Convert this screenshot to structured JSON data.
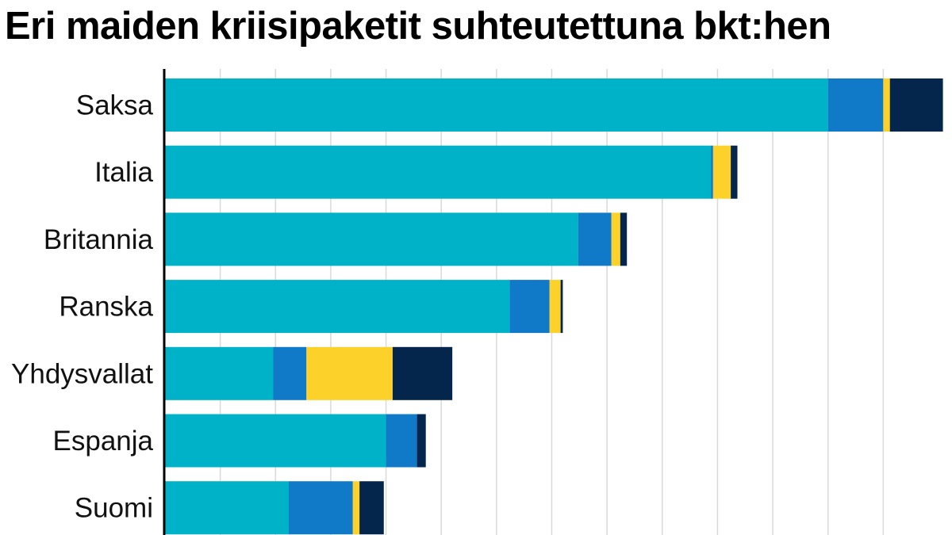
{
  "chart_data": {
    "type": "bar",
    "orientation": "horizontal",
    "stacked": true,
    "title": "Eri maiden kriisipaketit suhteutettuna bkt:hen",
    "categories": [
      "Saksa",
      "Italia",
      "Britannia",
      "Ranska",
      "Yhdysvallat",
      "Espanja",
      "Suomi"
    ],
    "series": [
      {
        "color": "#00b2c8",
        "values": [
          30.0,
          24.7,
          18.7,
          15.6,
          4.9,
          10.0,
          5.6
        ]
      },
      {
        "color": "#107ac9",
        "values": [
          2.5,
          0.1,
          1.5,
          1.8,
          1.5,
          1.4,
          2.9
        ]
      },
      {
        "color": "#fcd12a",
        "values": [
          0.3,
          0.8,
          0.4,
          0.5,
          3.9,
          0.0,
          0.3
        ]
      },
      {
        "color": "#04254c",
        "values": [
          2.4,
          0.3,
          0.3,
          0.1,
          2.7,
          0.4,
          1.1
        ]
      }
    ],
    "xlim": [
      0,
      35
    ],
    "grid": true,
    "gridlines": [
      2.5,
      5,
      7.5,
      10,
      12.5,
      15,
      17.5,
      20,
      22.5,
      25,
      27.5,
      30,
      32.5
    ]
  }
}
